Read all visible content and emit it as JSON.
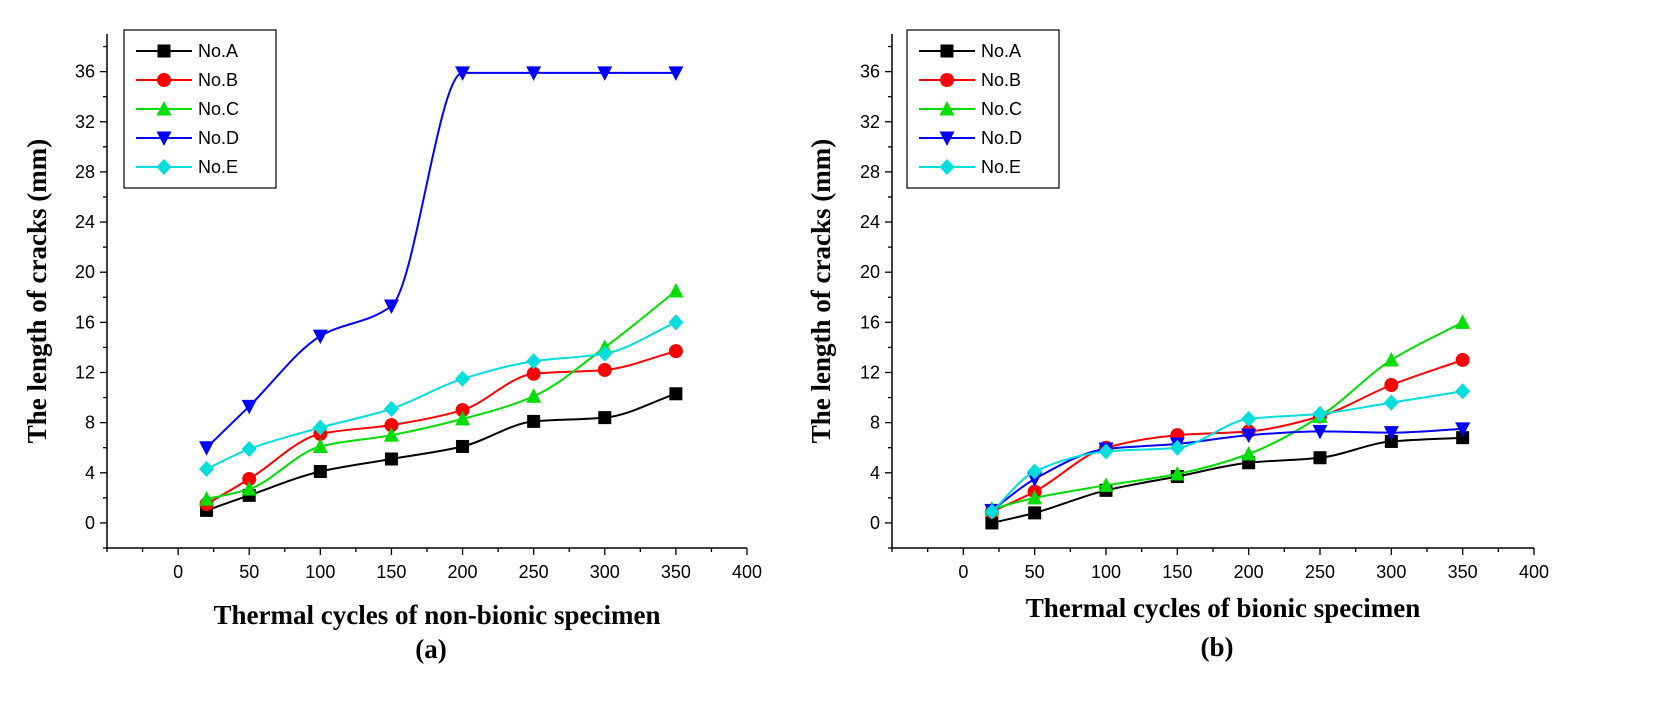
{
  "chart_data": [
    {
      "type": "line",
      "panel_label": "(a)",
      "xlabel": "Thermal cycles of non-bionic specimen",
      "ylabel": "The length of cracks (mm)",
      "xlim": [
        -50,
        400
      ],
      "ylim": [
        -2,
        39
      ],
      "xticks": [
        0,
        50,
        100,
        150,
        200,
        250,
        300,
        350,
        400
      ],
      "yticks": [
        0,
        4,
        8,
        12,
        16,
        20,
        24,
        28,
        32,
        36
      ],
      "legend_position": "top-left",
      "x": [
        20,
        50,
        100,
        150,
        200,
        250,
        300,
        350
      ],
      "series": [
        {
          "name": "No.A",
          "color": "#000000",
          "marker": "square",
          "values": [
            1.0,
            2.2,
            4.1,
            5.1,
            6.1,
            8.1,
            8.4,
            10.3
          ]
        },
        {
          "name": "No.B",
          "color": "#ff0000",
          "marker": "circle",
          "values": [
            1.5,
            3.5,
            7.1,
            7.8,
            9.0,
            11.9,
            12.2,
            13.7
          ]
        },
        {
          "name": "No.C",
          "color": "#00dd00",
          "marker": "triangle-up",
          "values": [
            1.9,
            2.7,
            6.1,
            7.0,
            8.3,
            10.1,
            14.0,
            18.5
          ]
        },
        {
          "name": "No.D",
          "color": "#0000ff",
          "marker": "triangle-down",
          "values": [
            6.0,
            9.3,
            14.9,
            17.3,
            35.9,
            35.9,
            35.9,
            35.9
          ]
        },
        {
          "name": "No.E",
          "color": "#00dddd",
          "marker": "diamond",
          "values": [
            4.3,
            5.9,
            7.6,
            9.1,
            11.5,
            12.9,
            13.5,
            16.0
          ]
        }
      ]
    },
    {
      "type": "line",
      "panel_label": "(b)",
      "xlabel": "Thermal cycles of bionic specimen",
      "ylabel": "The length of cracks (mm)",
      "xlim": [
        -50,
        400
      ],
      "ylim": [
        -2,
        39
      ],
      "xticks": [
        0,
        50,
        100,
        150,
        200,
        250,
        300,
        350,
        400
      ],
      "yticks": [
        0,
        4,
        8,
        12,
        16,
        20,
        24,
        28,
        32,
        36
      ],
      "legend_position": "top-left",
      "x": [
        20,
        50,
        100,
        150,
        200,
        250,
        300,
        350
      ],
      "series": [
        {
          "name": "No.A",
          "color": "#000000",
          "marker": "square",
          "values": [
            0.0,
            0.8,
            2.6,
            3.7,
            4.8,
            5.2,
            6.5,
            6.8
          ]
        },
        {
          "name": "No.B",
          "color": "#ff0000",
          "marker": "circle",
          "values": [
            0.9,
            2.5,
            6.0,
            7.0,
            7.3,
            8.5,
            11.0,
            13.0
          ]
        },
        {
          "name": "No.C",
          "color": "#00dd00",
          "marker": "triangle-up",
          "values": [
            1.1,
            2.0,
            3.0,
            3.9,
            5.5,
            8.5,
            13.0,
            16.0
          ]
        },
        {
          "name": "No.D",
          "color": "#0000ff",
          "marker": "triangle-down",
          "values": [
            1.0,
            3.5,
            5.9,
            6.3,
            7.0,
            7.3,
            7.2,
            7.5
          ]
        },
        {
          "name": "No.E",
          "color": "#00dddd",
          "marker": "diamond",
          "values": [
            0.9,
            4.1,
            5.7,
            6.0,
            8.3,
            8.7,
            9.6,
            10.5
          ]
        }
      ]
    }
  ]
}
